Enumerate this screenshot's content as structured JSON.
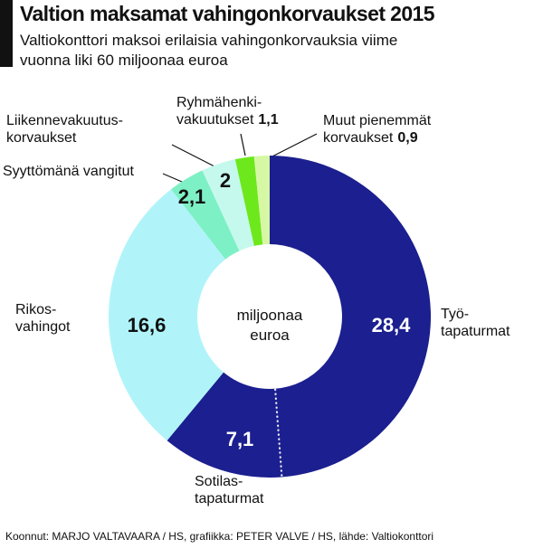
{
  "chart_data": {
    "type": "donut",
    "title": "Valtion maksamat vahingonkorvaukset 2015",
    "subtitle": "Valtiokonttori maksoi erilaisia vahingonkorvauksia viime vuonna liki 60 miljoonaa euroa",
    "center_label": "miljoonaa\neuroa",
    "categories": [
      "Työ-\ntapaturmat",
      "Sotilas-\ntapaturmat",
      "Rikos-\nvahingot",
      "Syyttömänä vangitut",
      "Liikennevakuutus-\nkorvaukset",
      "Ryhmähenki-\nvakuutukset",
      "Muut pienemmät\nkorvaukset"
    ],
    "values": [
      28.4,
      7.1,
      16.6,
      2.1,
      2,
      1.1,
      0.9
    ],
    "value_labels": [
      "28,4",
      "7,1",
      "16,6",
      "2,1",
      "2",
      "1,1",
      "0,9"
    ],
    "colors": [
      "#1b1f8f",
      "#1b1f8f",
      "#b0f4fa",
      "#7ef0c6",
      "#c6f9ee",
      "#6de81c",
      "#d6f8a4"
    ],
    "source": "Koonnut: MARJO VALTAVAARA / HS, grafiikka: PETER VALVE / HS, lähde: Valtiokonttori"
  }
}
